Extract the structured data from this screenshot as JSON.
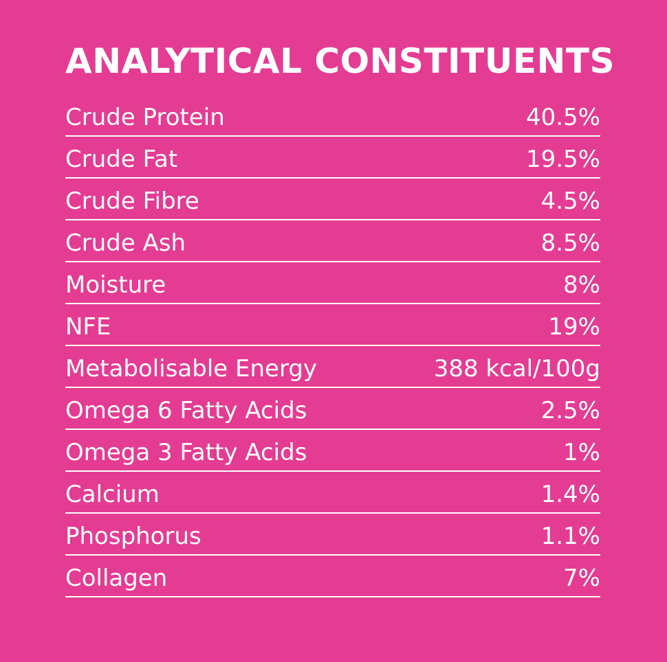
{
  "title": "ANALYTICAL CONSTITUENTS",
  "table": {
    "rows": [
      [
        "Crude Protein",
        "40.5%"
      ],
      [
        "Crude Fat",
        "19.5%"
      ],
      [
        "Crude Fibre",
        "4.5%"
      ],
      [
        "Crude Ash",
        "8.5%"
      ],
      [
        "Moisture",
        "8%"
      ],
      [
        "NFE",
        "19%"
      ],
      [
        "Metabolisable Energy",
        "388 kcal/100g"
      ],
      [
        "Omega 6 Fatty Acids",
        "2.5%"
      ],
      [
        "Omega 3 Fatty Acids",
        "1%"
      ],
      [
        "Calcium",
        "1.4%"
      ],
      [
        "Phosphorus",
        "1.1%"
      ],
      [
        "Collagen",
        "7%"
      ]
    ]
  }
}
